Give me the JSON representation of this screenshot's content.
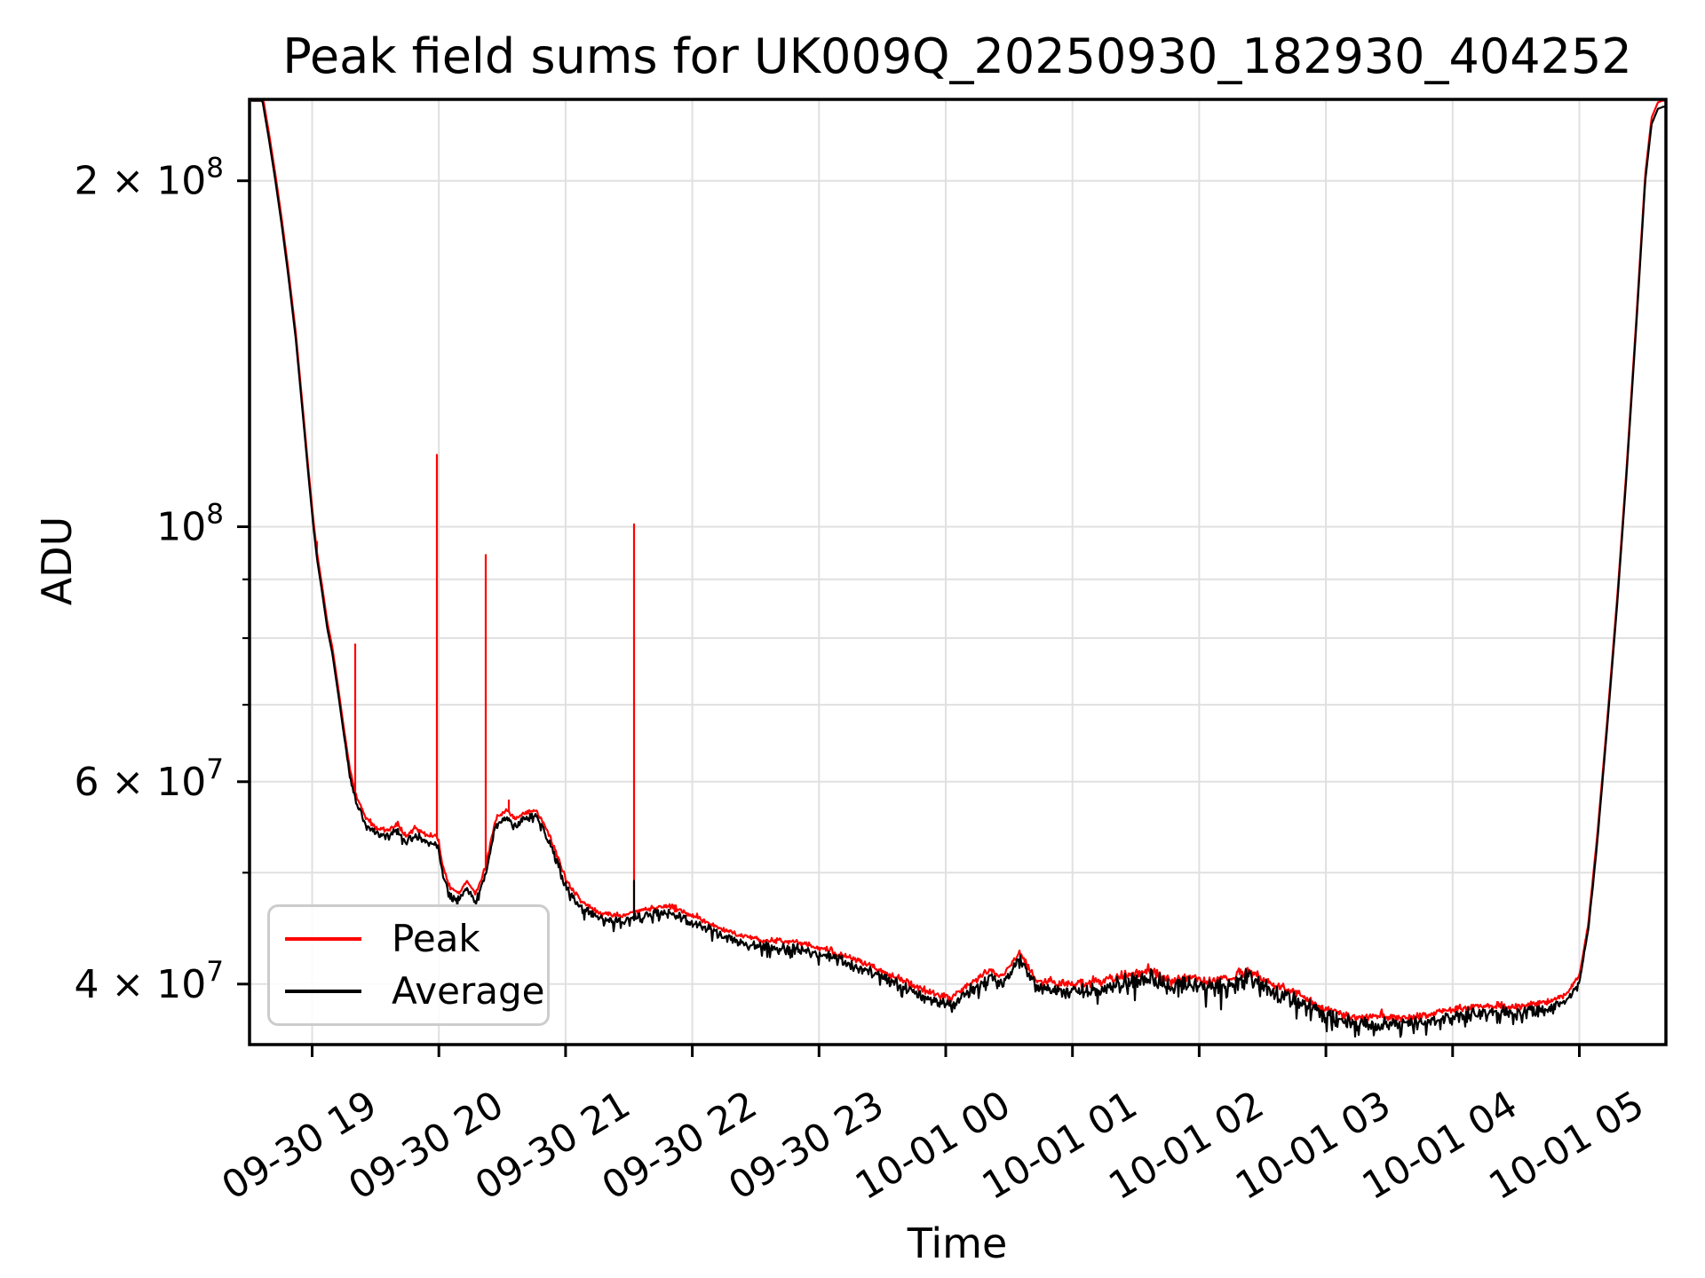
{
  "title": "Peak field sums for UK009Q_20250930_182930_404252",
  "axes": {
    "xlabel": "Time",
    "ylabel": "ADU"
  },
  "legend": {
    "items": [
      {
        "label": "Peak",
        "color": "#ff0000"
      },
      {
        "label": "Average",
        "color": "#000000"
      }
    ]
  },
  "colors": {
    "peak_line": "#ff0000",
    "average_line": "#000000",
    "grid": "#e0e0e0",
    "spine": "#000000",
    "legend_border": "#cccccc"
  },
  "chart_data": {
    "type": "line",
    "title": "Peak field sums for UK009Q_20250930_182930_404252",
    "xlabel": "Time",
    "ylabel": "ADU",
    "grid": true,
    "legend_position": "lower left",
    "x_axis": {
      "unit": "hours since 2025-09-30 00:00",
      "xlim_hours": [
        18.506,
        29.665
      ],
      "tick_hours": [
        19,
        20,
        21,
        22,
        23,
        24,
        25,
        26,
        27,
        28,
        29
      ],
      "tick_labels": [
        "09-30 19",
        "09-30 20",
        "09-30 21",
        "09-30 22",
        "09-30 23",
        "10-01 00",
        "10-01 01",
        "10-01 02",
        "10-01 03",
        "10-01 04",
        "10-01 05"
      ]
    },
    "y_axis": {
      "scale": "log",
      "ylim": [
        35400000,
        236000000
      ],
      "major_ticks": [
        {
          "label": "2 × 10⁸",
          "base": "2 × 10",
          "sup": "8",
          "value": 200000000
        },
        {
          "label": "10⁸",
          "base": "10",
          "sup": "8",
          "value": 100000000
        },
        {
          "label": "6 × 10⁷",
          "base": "6 × 10",
          "sup": "7",
          "value": 60000000
        },
        {
          "label": "4 × 10⁷",
          "base": "4 × 10",
          "sup": "7",
          "value": 40000000
        }
      ],
      "minor_tick_values": [
        90000000,
        80000000,
        70000000,
        50000000
      ]
    },
    "value_scale": 1000000,
    "series": [
      {
        "name": "Peak",
        "color": "#ff0000",
        "offset_factor_vs_average": 1.013,
        "spikes": [
          [
            19.039,
            97
          ],
          [
            19.343,
            79
          ],
          [
            19.988,
            115.5
          ],
          [
            20.369,
            94.5
          ],
          [
            20.552,
            57.8
          ],
          [
            21.54,
            100.5
          ]
        ]
      },
      {
        "name": "Average",
        "color": "#000000",
        "spikes": [
          [
            21.54,
            49.2
          ]
        ],
        "control_points": [
          [
            18.51,
            260
          ],
          [
            18.56,
            245
          ],
          [
            18.61,
            234
          ],
          [
            18.66,
            217
          ],
          [
            18.71,
            200
          ],
          [
            18.76,
            183
          ],
          [
            18.81,
            166
          ],
          [
            18.87,
            146
          ],
          [
            18.93,
            124
          ],
          [
            18.97,
            111
          ],
          [
            19.01,
            100
          ],
          [
            19.04,
            93.5
          ],
          [
            19.08,
            87.5
          ],
          [
            19.12,
            81.5
          ],
          [
            19.16,
            77.5
          ],
          [
            19.21,
            71
          ],
          [
            19.25,
            66
          ],
          [
            19.3,
            60.5
          ],
          [
            19.35,
            57.5
          ],
          [
            19.42,
            55.2
          ],
          [
            19.5,
            54
          ],
          [
            19.6,
            53.7
          ],
          [
            19.68,
            54.4
          ],
          [
            19.74,
            53
          ],
          [
            19.81,
            54
          ],
          [
            19.9,
            53.3
          ],
          [
            19.99,
            53
          ],
          [
            20.03,
            50
          ],
          [
            20.09,
            47.8
          ],
          [
            20.16,
            47.3
          ],
          [
            20.22,
            48.6
          ],
          [
            20.29,
            47.2
          ],
          [
            20.37,
            50
          ],
          [
            20.45,
            55
          ],
          [
            20.53,
            56
          ],
          [
            20.6,
            55
          ],
          [
            20.68,
            55.6
          ],
          [
            20.76,
            56
          ],
          [
            20.84,
            54.2
          ],
          [
            20.93,
            51.2
          ],
          [
            21.01,
            48.5
          ],
          [
            21.12,
            46.7
          ],
          [
            21.27,
            45.5
          ],
          [
            21.45,
            45.3
          ],
          [
            21.6,
            45.8
          ],
          [
            21.8,
            46.2
          ],
          [
            21.97,
            45.4
          ],
          [
            22.12,
            44.7
          ],
          [
            22.35,
            43.6
          ],
          [
            22.55,
            43.1
          ],
          [
            22.8,
            43
          ],
          [
            23.1,
            42.2
          ],
          [
            23.35,
            41.2
          ],
          [
            23.6,
            40.1
          ],
          [
            23.85,
            38.9
          ],
          [
            24.05,
            38.4
          ],
          [
            24.22,
            39.7
          ],
          [
            24.35,
            40.6
          ],
          [
            24.44,
            39.9
          ],
          [
            24.58,
            42.1
          ],
          [
            24.72,
            39.7
          ],
          [
            24.95,
            39.5
          ],
          [
            25.18,
            39.6
          ],
          [
            25.35,
            40
          ],
          [
            25.62,
            40.5
          ],
          [
            25.78,
            39.7
          ],
          [
            25.95,
            40
          ],
          [
            26.1,
            39.6
          ],
          [
            26.25,
            39.9
          ],
          [
            26.38,
            40.6
          ],
          [
            26.55,
            39.6
          ],
          [
            26.78,
            38.7
          ],
          [
            27.0,
            37.5
          ],
          [
            27.2,
            37
          ],
          [
            27.45,
            36.9
          ],
          [
            27.75,
            37
          ],
          [
            27.95,
            37.4
          ],
          [
            28.15,
            37.7
          ],
          [
            28.35,
            37.8
          ],
          [
            28.55,
            37.7
          ],
          [
            28.75,
            38.1
          ],
          [
            28.9,
            38.7
          ],
          [
            29.0,
            40.2
          ],
          [
            29.07,
            44.5
          ],
          [
            29.14,
            53
          ],
          [
            29.22,
            67
          ],
          [
            29.3,
            86
          ],
          [
            29.37,
            110
          ],
          [
            29.45,
            150
          ],
          [
            29.52,
            200
          ],
          [
            29.57,
            224
          ],
          [
            29.62,
            231
          ],
          [
            29.665,
            232
          ]
        ]
      }
    ],
    "noise_amp_profile": [
      [
        18.51,
        0.0005
      ],
      [
        19.25,
        0.0015
      ],
      [
        19.45,
        0.006
      ],
      [
        19.9,
        0.0065
      ],
      [
        20.35,
        0.005
      ],
      [
        20.9,
        0.0065
      ],
      [
        22.0,
        0.007
      ],
      [
        23.0,
        0.008
      ],
      [
        24.0,
        0.0095
      ],
      [
        24.8,
        0.009
      ],
      [
        25.25,
        0.013
      ],
      [
        26.4,
        0.013
      ],
      [
        27.0,
        0.012
      ],
      [
        27.8,
        0.011
      ],
      [
        28.3,
        0.0095
      ],
      [
        28.85,
        0.008
      ],
      [
        29.02,
        0.003
      ],
      [
        29.15,
        0.001
      ],
      [
        29.4,
        0.0004
      ],
      [
        29.67,
        0.0003
      ]
    ]
  }
}
